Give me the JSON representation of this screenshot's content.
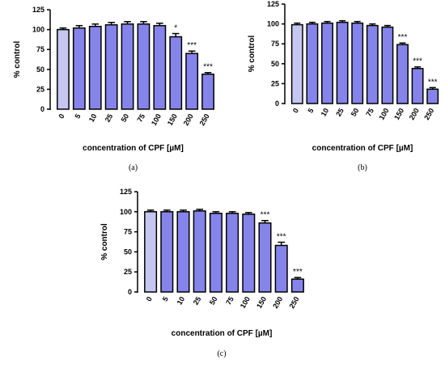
{
  "colors": {
    "bar": "#8484ea",
    "control_bar": "#c6c6f2",
    "outline": "#000000"
  },
  "chart_data": [
    {
      "type": "bar",
      "panel_label": "(a)",
      "categories": [
        "0",
        "5",
        "10",
        "25",
        "50",
        "75",
        "100",
        "150",
        "200",
        "250"
      ],
      "values": [
        100,
        102,
        104,
        106,
        107,
        107,
        105,
        91,
        70,
        44
      ],
      "errors": [
        2,
        3,
        3,
        3,
        3,
        3,
        3,
        4,
        3,
        2
      ],
      "significance": [
        "",
        "",
        "",
        "",
        "",
        "",
        "",
        "*",
        "***",
        "***"
      ],
      "xlabel": "concentration of CPF [µM]",
      "ylabel": "% control",
      "ylim": [
        0,
        125
      ],
      "yticks": [
        "0",
        "25",
        "50",
        "75",
        "100",
        "125"
      ]
    },
    {
      "type": "bar",
      "panel_label": "(b)",
      "categories": [
        "0",
        "5",
        "10",
        "25",
        "50",
        "75",
        "100",
        "150",
        "200",
        "250"
      ],
      "values": [
        99,
        100,
        101,
        102,
        101,
        98,
        96,
        74,
        44,
        18
      ],
      "errors": [
        2,
        2,
        2,
        2,
        2,
        2,
        2,
        2,
        2,
        2
      ],
      "significance": [
        "",
        "",
        "",
        "",
        "",
        "",
        "",
        "***",
        "***",
        "***"
      ],
      "xlabel": "concentration of CPF [µM]",
      "ylabel": "% control",
      "ylim": [
        0,
        125
      ],
      "yticks": [
        "0",
        "25",
        "50",
        "75",
        "100",
        "125"
      ]
    },
    {
      "type": "bar",
      "panel_label": "(c)",
      "categories": [
        "0",
        "5",
        "10",
        "25",
        "50",
        "75",
        "100",
        "150",
        "200",
        "250"
      ],
      "values": [
        100,
        100,
        100,
        101,
        98,
        98,
        97,
        86,
        58,
        16
      ],
      "errors": [
        2,
        2,
        2,
        2,
        2,
        2,
        2,
        3,
        4,
        2
      ],
      "significance": [
        "",
        "",
        "",
        "",
        "",
        "",
        "",
        "***",
        "***",
        "***"
      ],
      "xlabel": "concentration of CPF [µM]",
      "ylabel": "% control",
      "ylim": [
        0,
        125
      ],
      "yticks": [
        "0",
        "25",
        "50",
        "75",
        "100",
        "125"
      ]
    }
  ]
}
